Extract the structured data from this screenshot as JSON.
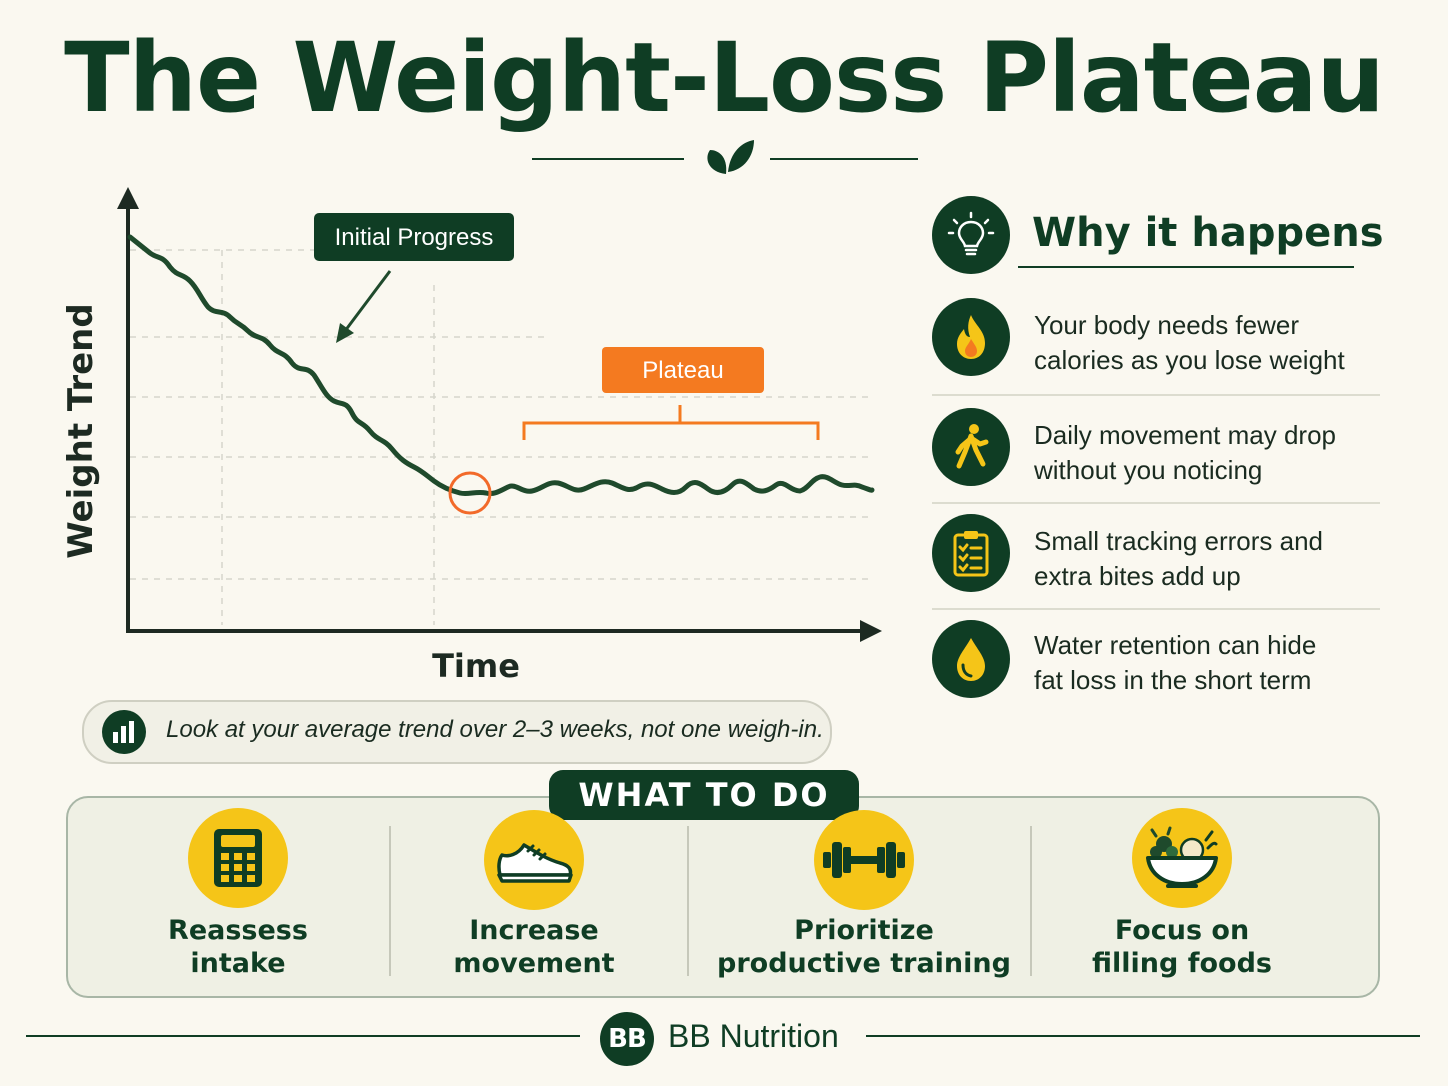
{
  "title": "The Weight-Loss Plateau",
  "chart": {
    "y_axis_label": "Weight Trend",
    "x_axis_label": "Time",
    "initial_label": "Initial Progress",
    "plateau_label": "Plateau"
  },
  "why": {
    "heading": "Why it happens",
    "reasons": [
      {
        "icon": "flame-icon",
        "line1": "Your body needs fewer",
        "line2": "calories as you lose weight"
      },
      {
        "icon": "walking-person-icon",
        "line1": "Daily movement may drop",
        "line2": "without you noticing"
      },
      {
        "icon": "clipboard-checklist-icon",
        "line1": "Small tracking errors and",
        "line2": "extra bites add up"
      },
      {
        "icon": "water-drop-icon",
        "line1": "Water retention can hide",
        "line2": "fat loss in the short term"
      }
    ]
  },
  "tip": "Look at your average trend over 2–3 weeks, not one weigh-in.",
  "todo": {
    "heading": "WHAT TO DO",
    "actions": [
      {
        "icon": "calculator-icon",
        "line1": "Reassess",
        "line2": "intake"
      },
      {
        "icon": "sneaker-icon",
        "line1": "Increase",
        "line2": "movement"
      },
      {
        "icon": "dumbbell-icon",
        "line1": "Prioritize",
        "line2": "productive training"
      },
      {
        "icon": "salad-bowl-icon",
        "line1": "Focus on",
        "line2": "filling foods"
      }
    ]
  },
  "brand": {
    "badge": "BB",
    "name": "BB Nutrition"
  },
  "colors": {
    "dark_green": "#0f3d24",
    "orange": "#f47a20",
    "yellow": "#f5c518",
    "background": "#faf8f0"
  }
}
